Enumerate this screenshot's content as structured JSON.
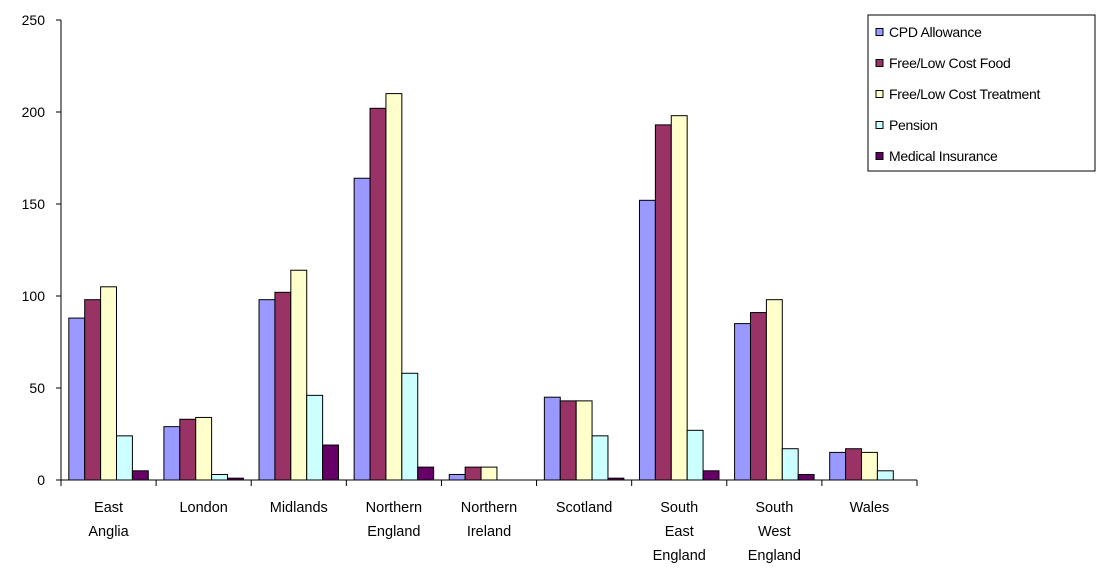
{
  "chart_data": {
    "type": "bar",
    "title": "",
    "xlabel": "",
    "ylabel": "",
    "ylim": [
      0,
      250
    ],
    "yticks": [
      0,
      50,
      100,
      150,
      200,
      250
    ],
    "grid": false,
    "legend_position": "top-right",
    "categories": [
      [
        "East",
        "Anglia"
      ],
      [
        "London"
      ],
      [
        "Midlands"
      ],
      [
        "Northern",
        "England"
      ],
      [
        "Northern",
        "Ireland"
      ],
      [
        "Scotland"
      ],
      [
        "South",
        "East",
        "England"
      ],
      [
        "South",
        "West",
        "England"
      ],
      [
        "Wales"
      ]
    ],
    "series": [
      {
        "name": "CPD Allowance",
        "color": "#9999ff",
        "values": [
          88,
          29,
          98,
          164,
          3,
          45,
          152,
          85,
          15
        ]
      },
      {
        "name": "Free/Low Cost Food",
        "color": "#993366",
        "values": [
          98,
          33,
          102,
          202,
          7,
          43,
          193,
          91,
          17
        ]
      },
      {
        "name": "Free/Low Cost Treatment",
        "color": "#ffffcc",
        "values": [
          105,
          34,
          114,
          210,
          7,
          43,
          198,
          98,
          15
        ]
      },
      {
        "name": "Pension",
        "color": "#ccffff",
        "values": [
          24,
          3,
          46,
          58,
          0,
          24,
          27,
          17,
          5
        ]
      },
      {
        "name": "Medical Insurance",
        "color": "#660066",
        "values": [
          5,
          1,
          19,
          7,
          0,
          1,
          5,
          3,
          0
        ]
      }
    ]
  }
}
